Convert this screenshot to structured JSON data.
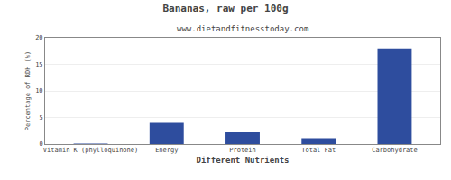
{
  "chart_data": {
    "type": "bar",
    "title": "Bananas, raw per 100g",
    "subtitle": "www.dietandfitnesstoday.com",
    "xlabel": "Different Nutrients",
    "ylabel": "Percentage of RDH (%)",
    "categories": [
      "Vitamin K (phylloquinone)",
      "Energy",
      "Protein",
      "Total Fat",
      "Carbohydrate"
    ],
    "values": [
      0.1,
      4.0,
      2.2,
      1.1,
      18.0
    ],
    "color": "#2e4d9e",
    "ylim": [
      0,
      20
    ],
    "yticks": [
      0,
      5,
      10,
      15,
      20
    ],
    "grid": true
  }
}
